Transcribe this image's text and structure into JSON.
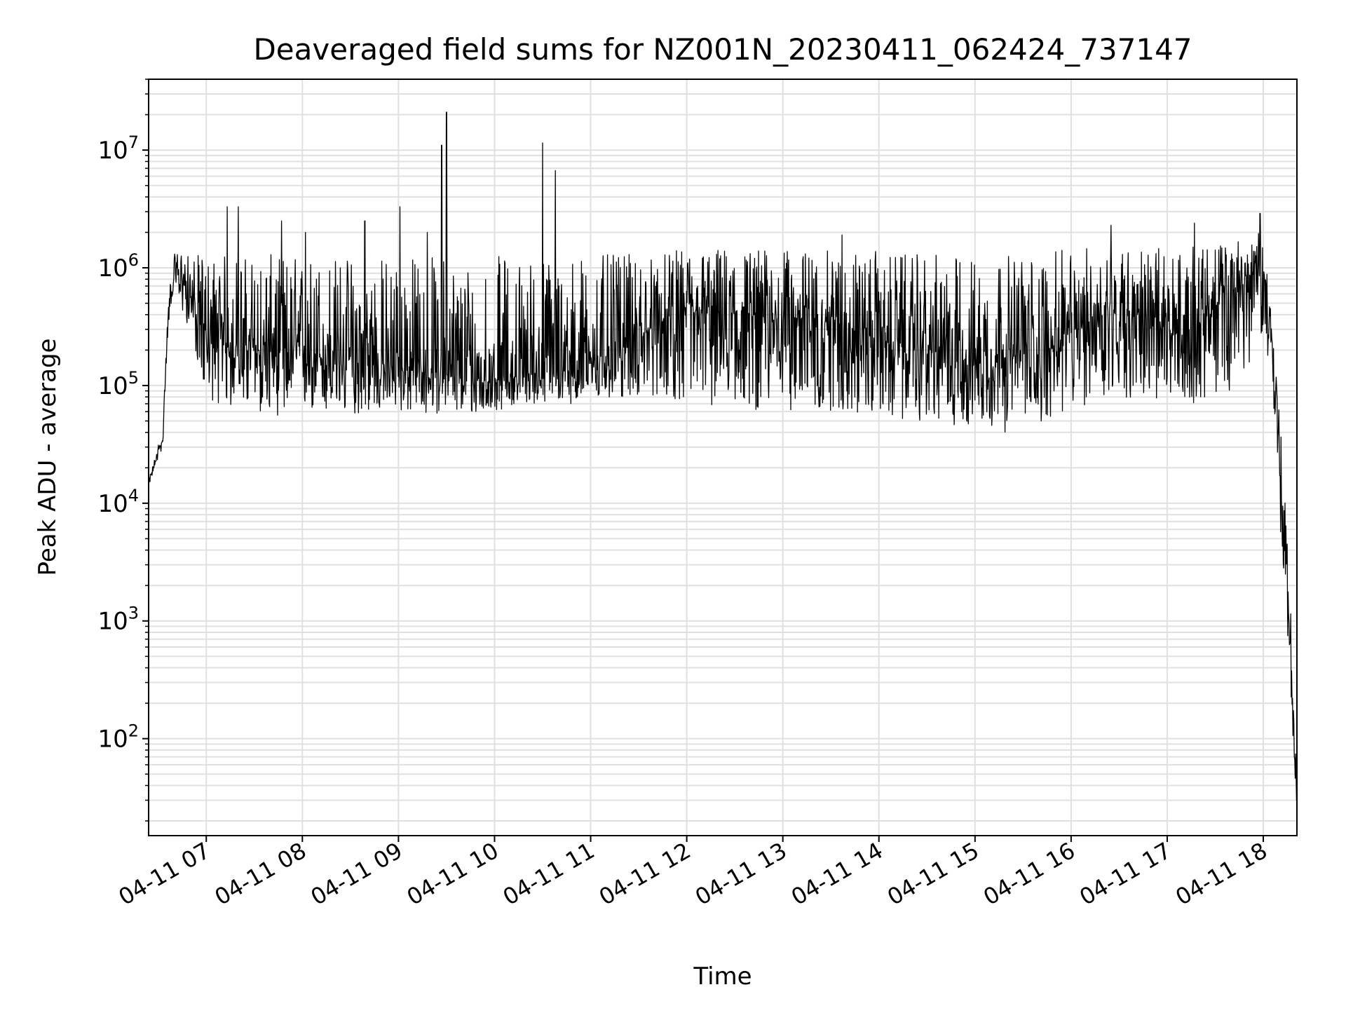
{
  "chart_data": {
    "type": "line",
    "title": "Deaveraged field sums for NZ001N_20230411_062424_737147",
    "xlabel": "Time",
    "ylabel": "Peak ADU - average",
    "yscale": "log",
    "ylim": [
      15,
      40000000
    ],
    "xlim": [
      "04-11 06:24",
      "04-11 18:21"
    ],
    "grid": "major and minor",
    "line_color": "#000000",
    "xticks": [
      "04-11 07",
      "04-11 08",
      "04-11 09",
      "04-11 10",
      "04-11 11",
      "04-11 12",
      "04-11 13",
      "04-11 14",
      "04-11 15",
      "04-11 16",
      "04-11 17",
      "04-11 18"
    ],
    "yticks": [
      {
        "value": 100,
        "base": "10",
        "exp": "2"
      },
      {
        "value": 1000,
        "base": "10",
        "exp": "3"
      },
      {
        "value": 10000,
        "base": "10",
        "exp": "4"
      },
      {
        "value": 100000,
        "base": "10",
        "exp": "5"
      },
      {
        "value": 1000000,
        "base": "10",
        "exp": "6"
      },
      {
        "value": 10000000,
        "base": "10",
        "exp": "7"
      }
    ],
    "series": [
      {
        "x": [
          "04-11 06:24",
          "04-11 06:27",
          "04-11 06:30",
          "04-11 06:33",
          "04-11 06:35",
          "04-11 06:37",
          "04-11 06:40",
          "04-11 06:45",
          "04-11 06:50",
          "04-11 06:55",
          "04-11 07:00",
          "04-11 07:15",
          "04-11 07:30",
          "04-11 07:45",
          "04-11 08:00",
          "04-11 08:15",
          "04-11 08:30",
          "04-11 08:45",
          "04-11 09:00",
          "04-11 09:15",
          "04-11 09:30",
          "04-11 09:45",
          "04-11 10:00",
          "04-11 10:15",
          "04-11 10:30",
          "04-11 10:45",
          "04-11 11:00",
          "04-11 11:15",
          "04-11 11:30",
          "04-11 11:45",
          "04-11 12:00",
          "04-11 12:15",
          "04-11 12:30",
          "04-11 12:45",
          "04-11 13:00",
          "04-11 13:15",
          "04-11 13:30",
          "04-11 13:45",
          "04-11 14:00",
          "04-11 14:15",
          "04-11 14:30",
          "04-11 14:45",
          "04-11 15:00",
          "04-11 15:15",
          "04-11 15:30",
          "04-11 15:45",
          "04-11 16:00",
          "04-11 16:15",
          "04-11 16:30",
          "04-11 16:45",
          "04-11 17:00",
          "04-11 17:15",
          "04-11 17:30",
          "04-11 17:45",
          "04-11 18:00",
          "04-11 18:05",
          "04-11 18:08",
          "04-11 18:11",
          "04-11 18:14",
          "04-11 18:17",
          "04-11 18:19",
          "04-11 18:21"
        ],
        "median": [
          15000,
          20000,
          28000,
          35000,
          200000,
          500000,
          900000,
          800000,
          600000,
          350000,
          250000,
          220000,
          200000,
          190000,
          180000,
          170000,
          160000,
          150000,
          140000,
          130000,
          120000,
          110000,
          110000,
          120000,
          130000,
          150000,
          160000,
          200000,
          250000,
          350000,
          400000,
          400000,
          400000,
          380000,
          380000,
          360000,
          350000,
          300000,
          250000,
          200000,
          200000,
          180000,
          170000,
          170000,
          180000,
          200000,
          260000,
          400000,
          450000,
          400000,
          260000,
          300000,
          450000,
          700000,
          1000000,
          300000,
          60000,
          15000,
          3000,
          600,
          150,
          25
        ],
        "low": [
          14000,
          18000,
          24000,
          30000,
          150000,
          400000,
          700000,
          400000,
          300000,
          150000,
          80000,
          60000,
          60000,
          55000,
          60000,
          55000,
          55000,
          60000,
          60000,
          55000,
          60000,
          55000,
          60000,
          70000,
          70000,
          70000,
          70000,
          75000,
          80000,
          80000,
          70000,
          65000,
          70000,
          60000,
          65000,
          55000,
          60000,
          55000,
          55000,
          50000,
          50000,
          45000,
          45000,
          40000,
          40000,
          50000,
          60000,
          70000,
          80000,
          70000,
          70000,
          70000,
          80000,
          100000,
          300000,
          100000,
          20000,
          5000,
          1000,
          300,
          60,
          20
        ],
        "high": [
          16000,
          22000,
          32000,
          40000,
          300000,
          700000,
          1300000,
          1500000,
          1200000,
          1300000,
          1300000,
          1300000,
          1300000,
          1300000,
          1300000,
          1300000,
          1300000,
          1300000,
          1300000,
          1300000,
          1300000,
          1300000,
          1300000,
          1300000,
          1300000,
          1300000,
          1300000,
          1300000,
          1300000,
          1300000,
          1500000,
          1500000,
          1500000,
          1500000,
          1400000,
          1400000,
          1400000,
          1400000,
          1400000,
          1300000,
          1300000,
          1300000,
          1300000,
          1300000,
          1300000,
          1300000,
          1500000,
          1500000,
          1500000,
          1500000,
          1500000,
          1500000,
          1600000,
          1800000,
          2000000,
          500000,
          150000,
          40000,
          8000,
          1500,
          300,
          30
        ]
      }
    ],
    "spikes": [
      {
        "x": "04-11 07:13",
        "y": 3300000
      },
      {
        "x": "04-11 07:20",
        "y": 3300000
      },
      {
        "x": "04-11 07:47",
        "y": 2500000
      },
      {
        "x": "04-11 08:02",
        "y": 2000000
      },
      {
        "x": "04-11 08:39",
        "y": 2500000
      },
      {
        "x": "04-11 09:01",
        "y": 3300000
      },
      {
        "x": "04-11 09:18",
        "y": 2000000
      },
      {
        "x": "04-11 09:27",
        "y": 11000000
      },
      {
        "x": "04-11 09:30",
        "y": 21000000
      },
      {
        "x": "04-11 10:30",
        "y": 11500000
      },
      {
        "x": "04-11 10:38",
        "y": 6700000
      },
      {
        "x": "04-11 13:37",
        "y": 1900000
      },
      {
        "x": "04-11 16:25",
        "y": 2300000
      },
      {
        "x": "04-11 17:17",
        "y": 2400000
      },
      {
        "x": "04-11 17:58",
        "y": 2900000
      }
    ]
  }
}
